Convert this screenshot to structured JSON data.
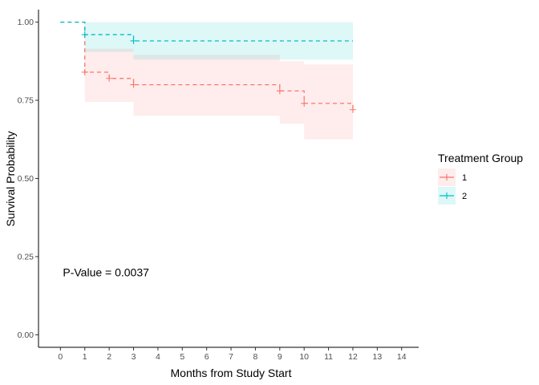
{
  "chart_data": {
    "type": "line",
    "subtype": "kaplan-meier",
    "xlabel": "Months from Study Start",
    "ylabel": "Survival Probability",
    "xlim": [
      -0.9,
      14.7
    ],
    "ylim": [
      -0.04,
      1.04
    ],
    "xticks": [
      0,
      1,
      2,
      3,
      4,
      5,
      6,
      7,
      8,
      9,
      10,
      11,
      12,
      13,
      14
    ],
    "yticks": [
      0.0,
      0.25,
      0.5,
      0.75,
      1.0
    ],
    "ytick_labels": [
      "0.00",
      "0.25",
      "0.50",
      "0.75",
      "1.00"
    ],
    "grid": false,
    "annotation": {
      "text": "P-Value = 0.0037",
      "x": 0.1,
      "y": 0.2
    },
    "legend": {
      "title": "Treatment Group",
      "position": "right"
    },
    "series": [
      {
        "name": "1",
        "color": "#F8766D",
        "fill": "#FDE3E1",
        "linestyle": "dashed",
        "steps": [
          [
            0,
            1.0
          ],
          [
            1,
            0.84
          ],
          [
            2,
            0.82
          ],
          [
            3,
            0.8
          ],
          [
            9,
            0.78
          ],
          [
            10,
            0.74
          ],
          [
            12,
            0.72
          ]
        ],
        "censor": [
          [
            1,
            0.84
          ],
          [
            2,
            0.82
          ],
          [
            3,
            0.8
          ],
          [
            9,
            0.78
          ],
          [
            10,
            0.74
          ],
          [
            12,
            0.72
          ]
        ],
        "ci_lower": [
          [
            0,
            1.0
          ],
          [
            1,
            0.745
          ],
          [
            3,
            0.7
          ],
          [
            6,
            0.7
          ],
          [
            9,
            0.675
          ],
          [
            10,
            0.625
          ],
          [
            12,
            0.605
          ]
        ],
        "ci_upper": [
          [
            0,
            1.0
          ],
          [
            1,
            0.915
          ],
          [
            3,
            0.895
          ],
          [
            6,
            0.895
          ],
          [
            9,
            0.875
          ],
          [
            10,
            0.865
          ],
          [
            12,
            0.86
          ]
        ]
      },
      {
        "name": "2",
        "color": "#00BFC4",
        "fill": "#E1F4F5",
        "linestyle": "dashed",
        "steps": [
          [
            0,
            1.0
          ],
          [
            1,
            0.96
          ],
          [
            3,
            0.94
          ],
          [
            12,
            0.94
          ]
        ],
        "censor": [
          [
            1,
            0.96
          ],
          [
            3,
            0.94
          ]
        ],
        "ci_lower": [
          [
            0,
            1.0
          ],
          [
            1,
            0.905
          ],
          [
            3,
            0.88
          ],
          [
            12,
            0.88
          ]
        ],
        "ci_upper": [
          [
            0,
            1.0
          ],
          [
            1,
            1.0
          ],
          [
            12,
            1.0
          ]
        ]
      }
    ]
  }
}
